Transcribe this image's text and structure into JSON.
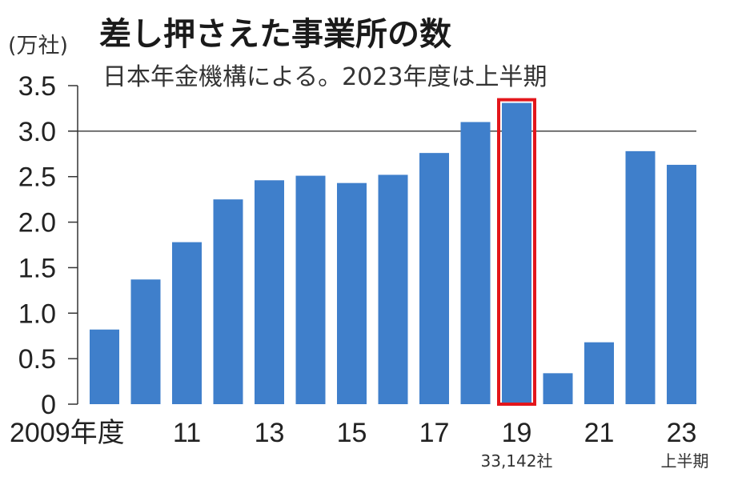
{
  "chart_data": {
    "type": "bar",
    "title": "差し押さえた事業所の数",
    "subtitle": "日本年金機構による。2023年度は上半期",
    "unit_label": "(万社)",
    "categories": [
      "2009年度",
      "10",
      "11",
      "12",
      "13",
      "14",
      "15",
      "16",
      "17",
      "18",
      "19",
      "20",
      "21",
      "22",
      "23"
    ],
    "x_tick_labels": [
      {
        "category": "2009年度",
        "label": "2009年度"
      },
      {
        "category": "11",
        "label": "11"
      },
      {
        "category": "13",
        "label": "13"
      },
      {
        "category": "15",
        "label": "15"
      },
      {
        "category": "17",
        "label": "17"
      },
      {
        "category": "19",
        "label": "19"
      },
      {
        "category": "21",
        "label": "21"
      },
      {
        "category": "23",
        "label": "23"
      }
    ],
    "values": [
      0.82,
      1.37,
      1.78,
      2.25,
      2.46,
      2.51,
      2.43,
      2.52,
      2.76,
      3.1,
      3.31,
      0.34,
      0.68,
      2.78,
      2.63
    ],
    "ylim": [
      0,
      3.5
    ],
    "y_ticks": [
      "0",
      "0.5",
      "1.0",
      "1.5",
      "2.0",
      "2.5",
      "3.0",
      "3.5"
    ],
    "reference_line": 3.0,
    "bar_color": "#3f7fcb",
    "highlight": {
      "category": "19",
      "color": "#e3161b",
      "note": "33,142社"
    },
    "last_category_note": "上半期",
    "grid": false,
    "legend": "none"
  }
}
